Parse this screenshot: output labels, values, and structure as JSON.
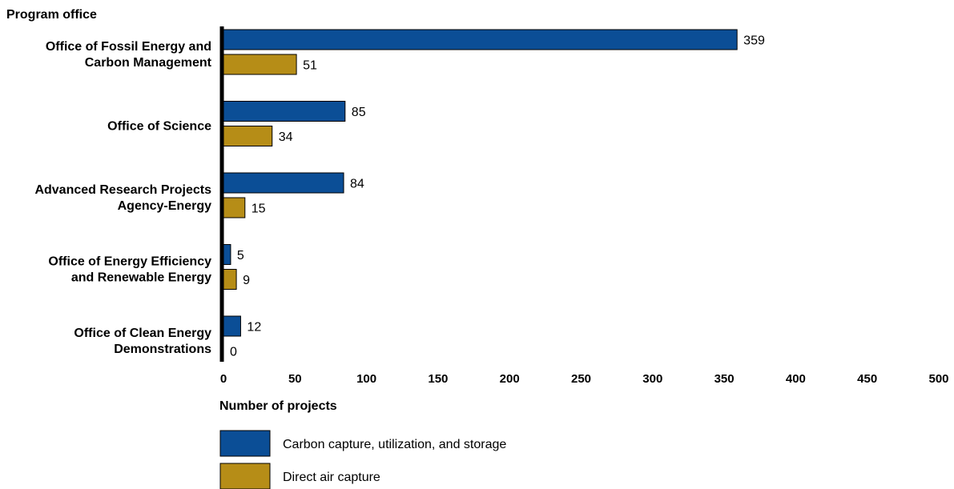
{
  "chart_data": {
    "type": "bar",
    "orientation": "horizontal",
    "category_axis_title": "Program office",
    "xlabel": "Number of projects",
    "xlim": [
      0,
      500
    ],
    "xticks": [
      0,
      50,
      100,
      150,
      200,
      250,
      300,
      350,
      400,
      450,
      500
    ],
    "grid": false,
    "legend_position": "bottom-left",
    "categories": [
      [
        "Office of Fossil Energy and",
        "Carbon Management"
      ],
      [
        "Office of Science"
      ],
      [
        "Advanced Research Projects",
        "Agency-Energy"
      ],
      [
        "Office of Energy Efficiency",
        "and Renewable Energy"
      ],
      [
        "Office of Clean Energy",
        "Demonstrations"
      ]
    ],
    "series": [
      {
        "name": "Carbon capture, utilization, and storage",
        "color": "#0b4e96",
        "values": [
          359,
          85,
          84,
          5,
          12
        ]
      },
      {
        "name": "Direct air capture",
        "color": "#b68d17",
        "values": [
          51,
          34,
          15,
          9,
          0
        ]
      }
    ]
  }
}
